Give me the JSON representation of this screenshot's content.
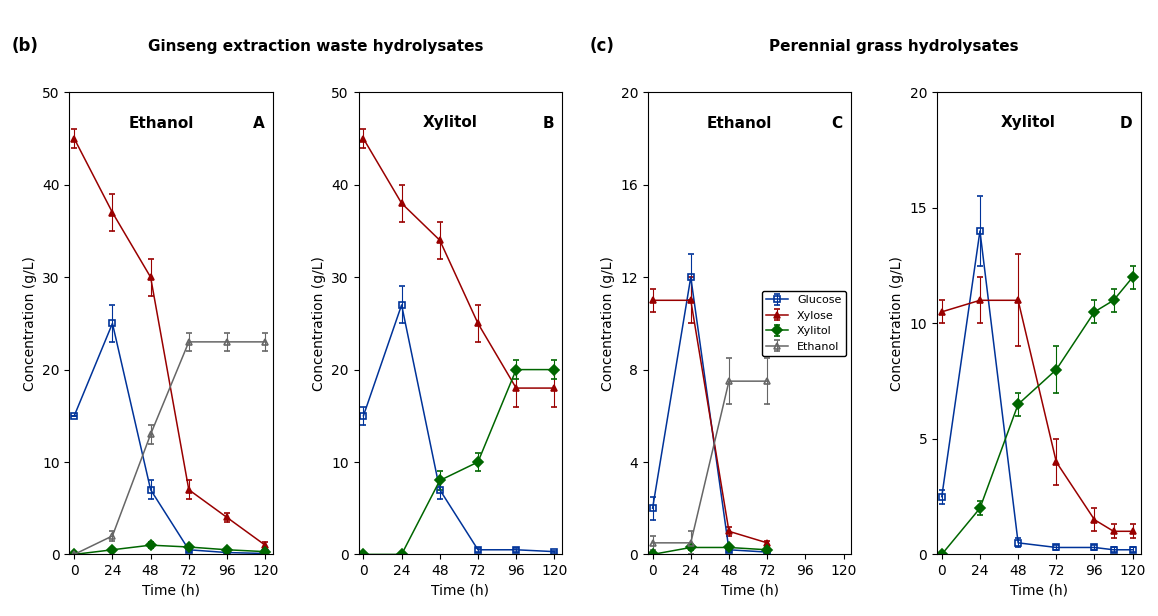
{
  "chart_data": [
    {
      "type": "line",
      "title": "Ethanol",
      "subtitle": "Ginseng extraction waste hydrolysates",
      "annotations": [
        "(b)",
        "A"
      ],
      "x_label": "Time (h)",
      "y_label": "Concentration (g/L)",
      "x": [
        0,
        24,
        48,
        72,
        96,
        120
      ],
      "series": [
        {
          "name": "Glucose",
          "color": "#003399",
          "marker": "open-square",
          "values": [
            15,
            25,
            7,
            0.5,
            0.2,
            0.1
          ],
          "errors": [
            0,
            2,
            1,
            0.2,
            0.1,
            0.1
          ]
        },
        {
          "name": "Xylose",
          "color": "#990000",
          "marker": "triangle",
          "values": [
            45,
            37,
            30,
            7,
            4,
            1
          ],
          "errors": [
            1,
            2,
            2,
            1,
            0.5,
            0.3
          ]
        },
        {
          "name": "Xylitol",
          "color": "#006600",
          "marker": "diamond",
          "values": [
            0,
            0.5,
            1,
            0.8,
            0.5,
            0.3
          ],
          "errors": [
            0,
            0.2,
            0.3,
            0.2,
            0.2,
            0.1
          ]
        },
        {
          "name": "Ethanol",
          "color": "#666666",
          "marker": "open-triangle",
          "values": [
            0,
            2,
            13,
            23,
            23,
            23
          ],
          "errors": [
            0,
            0.5,
            1,
            1,
            1,
            1
          ]
        }
      ],
      "xlim": [
        -3,
        125
      ],
      "xticks": [
        0,
        24,
        48,
        72,
        96,
        120
      ],
      "ylim": [
        0,
        50
      ],
      "yticks": [
        0,
        10,
        20,
        30,
        40,
        50
      ]
    },
    {
      "type": "line",
      "title": "Xylitol",
      "annotations": [
        "B"
      ],
      "x_label": "Time (h)",
      "y_label": "Concentration (g/L)",
      "x": [
        0,
        24,
        48,
        72,
        96,
        120
      ],
      "series": [
        {
          "name": "Glucose",
          "color": "#003399",
          "marker": "open-square",
          "values": [
            15,
            27,
            7,
            0.5,
            0.5,
            0.3
          ],
          "errors": [
            1,
            2,
            1,
            0.2,
            0.2,
            0.1
          ]
        },
        {
          "name": "Xylose",
          "color": "#990000",
          "marker": "triangle",
          "values": [
            45,
            38,
            34,
            25,
            18,
            18
          ],
          "errors": [
            1,
            2,
            2,
            2,
            2,
            2
          ]
        },
        {
          "name": "Xylitol",
          "color": "#006600",
          "marker": "diamond",
          "values": [
            0,
            0,
            8,
            10,
            20,
            20
          ],
          "errors": [
            0,
            0,
            1,
            1,
            1,
            1
          ]
        }
      ],
      "xlim": [
        -3,
        125
      ],
      "xticks": [
        0,
        24,
        48,
        72,
        96,
        120
      ],
      "ylim": [
        0,
        50
      ],
      "yticks": [
        0,
        10,
        20,
        30,
        40,
        50
      ]
    },
    {
      "type": "line",
      "title": "Ethanol",
      "subtitle": "Perennial grass hydrolysates",
      "annotations": [
        "(c)",
        "C"
      ],
      "x_label": "Time (h)",
      "y_label": "Concentration (g/L)",
      "x": [
        0,
        24,
        48,
        72
      ],
      "series": [
        {
          "name": "Glucose",
          "color": "#003399",
          "marker": "open-square",
          "values": [
            2,
            12,
            0.2,
            0.1
          ],
          "errors": [
            0.5,
            1,
            0.1,
            0.1
          ]
        },
        {
          "name": "Xylose",
          "color": "#990000",
          "marker": "triangle",
          "values": [
            11,
            11,
            1,
            0.5
          ],
          "errors": [
            0.5,
            1,
            0.2,
            0.1
          ]
        },
        {
          "name": "Xylitol",
          "color": "#006600",
          "marker": "diamond",
          "values": [
            0,
            0.3,
            0.3,
            0.2
          ],
          "errors": [
            0,
            0.1,
            0.1,
            0.1
          ]
        },
        {
          "name": "Ethanol",
          "color": "#666666",
          "marker": "open-triangle",
          "values": [
            0.5,
            0.5,
            7.5,
            7.5
          ],
          "errors": [
            0.3,
            0.5,
            1,
            1
          ]
        }
      ],
      "legend": "center right",
      "xlim": [
        -3,
        125
      ],
      "xticks": [
        0,
        24,
        48,
        72,
        96,
        120
      ],
      "ylim": [
        0,
        20
      ],
      "yticks": [
        0,
        4,
        8,
        12,
        16,
        20
      ]
    },
    {
      "type": "line",
      "title": "Xylitol",
      "annotations": [
        "D"
      ],
      "x_label": "Time (h)",
      "y_label": "Concentration (g/L)",
      "x": [
        0,
        24,
        48,
        72,
        96,
        108,
        120
      ],
      "series": [
        {
          "name": "Glucose",
          "color": "#003399",
          "marker": "open-square",
          "values": [
            2.5,
            14,
            0.5,
            0.3,
            0.3,
            0.2,
            0.2
          ],
          "errors": [
            0.3,
            1.5,
            0.2,
            0.1,
            0.1,
            0.1,
            0.1
          ]
        },
        {
          "name": "Xylose",
          "color": "#990000",
          "marker": "triangle",
          "values": [
            10.5,
            11,
            11,
            4,
            1.5,
            1,
            1
          ],
          "errors": [
            0.5,
            1,
            2,
            1,
            0.5,
            0.3,
            0.3
          ]
        },
        {
          "name": "Xylitol",
          "color": "#006600",
          "marker": "diamond",
          "values": [
            0,
            2,
            6.5,
            8,
            10.5,
            11,
            12
          ],
          "errors": [
            0,
            0.3,
            0.5,
            1,
            0.5,
            0.5,
            0.5
          ]
        }
      ],
      "xlim": [
        -3,
        125
      ],
      "xticks": [
        0,
        24,
        48,
        72,
        96,
        120
      ],
      "ylim": [
        0,
        20
      ],
      "yticks": [
        0,
        5,
        10,
        15,
        20
      ]
    }
  ]
}
